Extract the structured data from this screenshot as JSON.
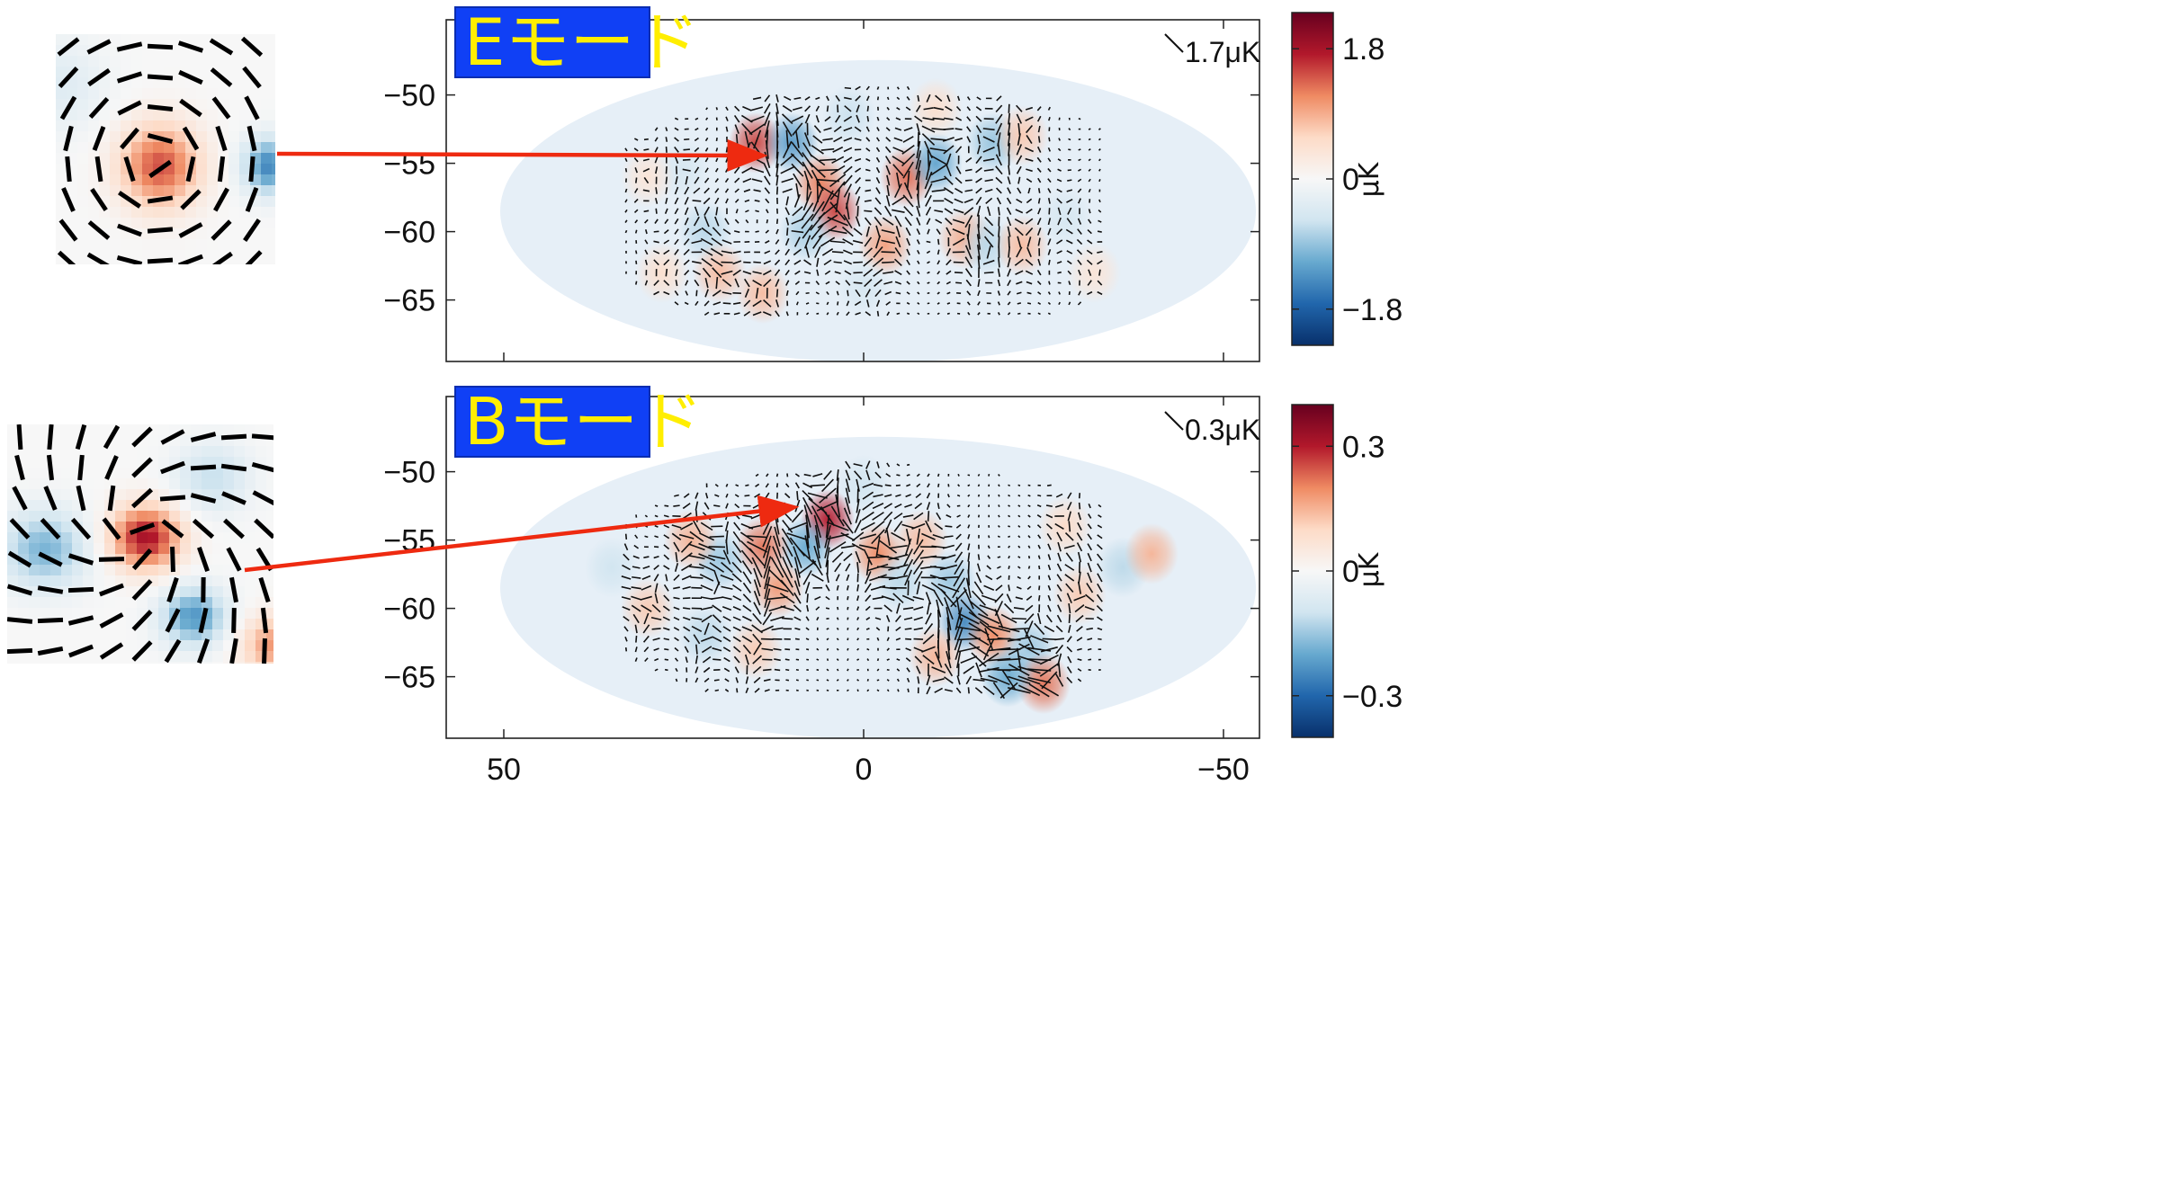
{
  "chart_data": [
    {
      "type": "heatmap",
      "id": "e",
      "badge": "Eモード",
      "pattern": "radial",
      "scale_bar_label": "1.7μK",
      "unit_label": "μK",
      "ylim": [
        -69.5,
        -44.5
      ],
      "y_ticks": [
        -50,
        -55,
        -60,
        -65
      ],
      "xlim": [
        58,
        -55
      ],
      "x_ticks": [
        50,
        0,
        -50
      ],
      "colorbar": {
        "range": [
          -2.3,
          2.3
        ],
        "ticks": [
          1.8,
          0,
          -1.8
        ],
        "tick_labels": [
          "1.8",
          "0",
          "−1.8"
        ]
      },
      "colormap": [
        "#08306b",
        "#2166ac",
        "#67a9cf",
        "#d1e5f0",
        "#f7f7f7",
        "#fddbc7",
        "#ef8a62",
        "#b2182b",
        "#67001f"
      ],
      "blobs": [
        {
          "x": 15,
          "y": -53.5,
          "v": 1.5
        },
        {
          "x": 10,
          "y": -53.5,
          "v": -1.3
        },
        {
          "x": 6,
          "y": -56.5,
          "v": 1.2
        },
        {
          "x": 4,
          "y": -58.5,
          "v": 1.5
        },
        {
          "x": 8,
          "y": -60,
          "v": -0.8
        },
        {
          "x": -6,
          "y": -56,
          "v": 1.3
        },
        {
          "x": -10,
          "y": -55,
          "v": -1.2
        },
        {
          "x": -3,
          "y": -61,
          "v": 1.0
        },
        {
          "x": -14,
          "y": -60.5,
          "v": 0.9
        },
        {
          "x": -17,
          "y": -61,
          "v": -0.7
        },
        {
          "x": -22,
          "y": -61,
          "v": 0.8
        },
        {
          "x": -18,
          "y": -53.5,
          "v": -0.9
        },
        {
          "x": -22,
          "y": -53,
          "v": 0.7
        },
        {
          "x": 22,
          "y": -60,
          "v": -0.7
        },
        {
          "x": 20,
          "y": -63,
          "v": 0.8
        },
        {
          "x": 14,
          "y": -64.5,
          "v": 0.8
        },
        {
          "x": 25,
          "y": -55.5,
          "v": -0.5
        },
        {
          "x": 28,
          "y": -63,
          "v": 0.5
        },
        {
          "x": -10,
          "y": -51,
          "v": 0.5
        },
        {
          "x": 2,
          "y": -51.5,
          "v": -0.6
        },
        {
          "x": -28,
          "y": -59,
          "v": -0.5
        },
        {
          "x": -32,
          "y": -63,
          "v": 0.4
        },
        {
          "x": 0,
          "y": -64,
          "v": -0.5
        },
        {
          "x": 30,
          "y": -56,
          "v": 0.4
        }
      ]
    },
    {
      "type": "heatmap",
      "id": "b",
      "badge": "Bモード",
      "pattern": "swirl",
      "scale_bar_label": "0.3μK",
      "unit_label": "μK",
      "ylim": [
        -69.5,
        -44.5
      ],
      "y_ticks": [
        -50,
        -55,
        -60,
        -65
      ],
      "xlim": [
        58,
        -55
      ],
      "x_ticks": [
        50,
        0,
        -50
      ],
      "x_tick_labels": [
        "50",
        "0",
        "−50"
      ],
      "colorbar": {
        "range": [
          -0.4,
          0.4
        ],
        "ticks": [
          0.3,
          0,
          -0.3
        ],
        "tick_labels": [
          "0.3",
          "0",
          "−0.3"
        ]
      },
      "colormap": [
        "#08306b",
        "#2166ac",
        "#67a9cf",
        "#d1e5f0",
        "#f7f7f7",
        "#fddbc7",
        "#ef8a62",
        "#b2182b",
        "#67001f"
      ],
      "blobs": [
        {
          "x": 5,
          "y": -53.5,
          "v": 0.3
        },
        {
          "x": 8,
          "y": -55.5,
          "v": -0.2
        },
        {
          "x": 14,
          "y": -55.5,
          "v": 0.22
        },
        {
          "x": 20,
          "y": -56.5,
          "v": -0.15
        },
        {
          "x": 24,
          "y": -55,
          "v": 0.15
        },
        {
          "x": 12,
          "y": -58.5,
          "v": 0.18
        },
        {
          "x": -2,
          "y": -56,
          "v": 0.2
        },
        {
          "x": -5,
          "y": -58,
          "v": -0.12
        },
        {
          "x": -8,
          "y": -55,
          "v": 0.14
        },
        {
          "x": -12,
          "y": -58,
          "v": -0.15
        },
        {
          "x": -14,
          "y": -61,
          "v": -0.25
        },
        {
          "x": -18,
          "y": -62,
          "v": 0.2
        },
        {
          "x": -23,
          "y": -63,
          "v": -0.15
        },
        {
          "x": -25,
          "y": -65.5,
          "v": 0.22
        },
        {
          "x": -20,
          "y": -65,
          "v": -0.2
        },
        {
          "x": -30,
          "y": -59,
          "v": 0.12
        },
        {
          "x": -36,
          "y": -57,
          "v": -0.12
        },
        {
          "x": 30,
          "y": -60,
          "v": 0.12
        },
        {
          "x": 22,
          "y": -62,
          "v": -0.12
        },
        {
          "x": -10,
          "y": -63.5,
          "v": 0.15
        },
        {
          "x": 0,
          "y": -51,
          "v": -0.1
        },
        {
          "x": -40,
          "y": -56,
          "v": 0.15
        },
        {
          "x": 35,
          "y": -57,
          "v": -0.1
        },
        {
          "x": 15,
          "y": -63,
          "v": 0.12
        },
        {
          "x": -28,
          "y": -54,
          "v": 0.1
        }
      ]
    }
  ]
}
